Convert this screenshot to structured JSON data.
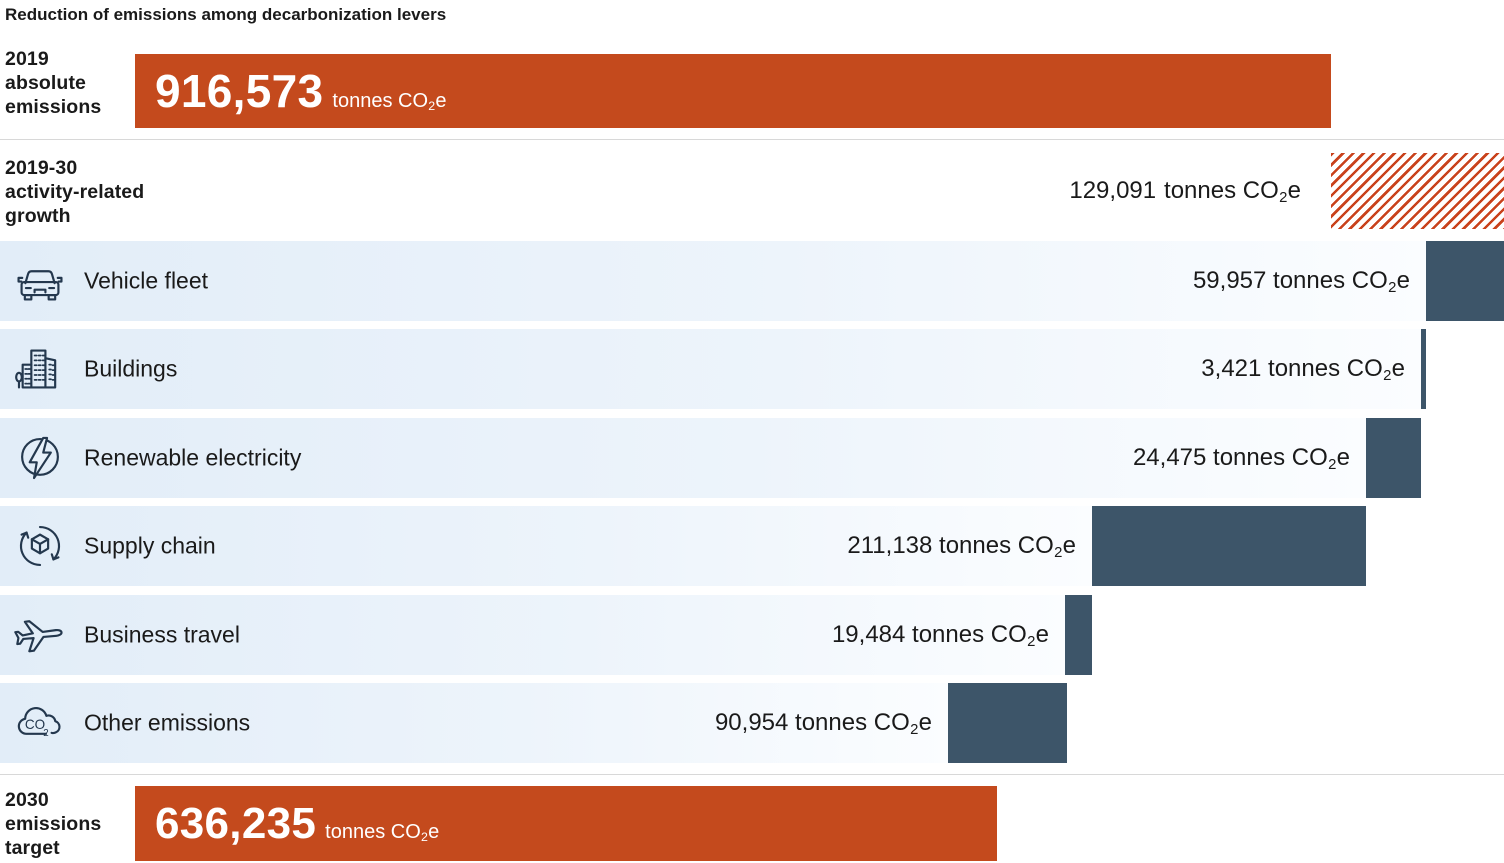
{
  "title": "Reduction of emissions among decarbonization levers",
  "unit": {
    "prefix": "tonnes CO",
    "sub": "2",
    "suffix": "e"
  },
  "start": {
    "label_lines": [
      "2019",
      "absolute",
      "emissions"
    ],
    "value": "916,573"
  },
  "growth": {
    "label_lines": [
      "2019-30",
      "activity-related",
      "growth"
    ],
    "value": "129,091"
  },
  "levers": [
    {
      "name": "Vehicle fleet",
      "icon": "car-icon",
      "value": "59,957"
    },
    {
      "name": "Buildings",
      "icon": "buildings-icon",
      "value": "3,421"
    },
    {
      "name": "Renewable electricity",
      "icon": "lightning-icon",
      "value": "24,475"
    },
    {
      "name": "Supply chain",
      "icon": "supply-chain-icon",
      "value": "211,138"
    },
    {
      "name": "Business travel",
      "icon": "airplane-icon",
      "value": "19,484"
    },
    {
      "name": "Other emissions",
      "icon": "co2-cloud-icon",
      "value": "90,954"
    }
  ],
  "target": {
    "label_lines": [
      "2030",
      "emissions",
      "target"
    ],
    "value": "636,235"
  },
  "colors": {
    "orange": "#c44a1d",
    "dark_blue": "#3d5569",
    "hatch_red": "#c9421c",
    "band_blue": "#e2edf8",
    "band_fade": "#fbfdff",
    "divider": "#d8d8d8",
    "text": "#1a1a1a",
    "icon_stroke": "#24384e"
  },
  "chart_data": {
    "type": "bar",
    "subtype": "waterfall",
    "title": "Reduction of emissions among decarbonization levers",
    "unit": "tonnes CO2e",
    "categories": [
      "2019 absolute emissions",
      "2019-30 activity-related growth",
      "Vehicle fleet",
      "Buildings",
      "Renewable electricity",
      "Supply chain",
      "Business travel",
      "Other emissions",
      "2030 emissions target"
    ],
    "values": [
      916573,
      129091,
      -59957,
      -3421,
      -24475,
      -211138,
      -19484,
      -90954,
      636235
    ],
    "roles": [
      "start",
      "increase",
      "decrease",
      "decrease",
      "decrease",
      "decrease",
      "decrease",
      "decrease",
      "total"
    ],
    "orientation": "horizontal",
    "grid": false,
    "legend": false
  }
}
